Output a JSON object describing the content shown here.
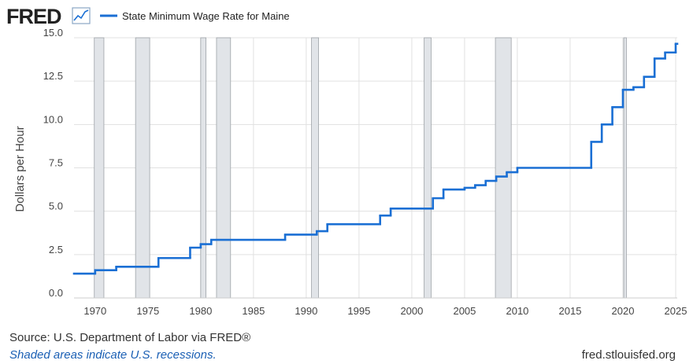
{
  "logo": "FRED",
  "chart_data": {
    "type": "line",
    "step": "post",
    "y_label": "Dollars per Hour",
    "x": [
      1968,
      1970,
      1972,
      1976,
      1979,
      1980,
      1981,
      1988,
      1991,
      1992,
      1997,
      1998,
      2002,
      2003,
      2005,
      2006,
      2007,
      2008,
      2009,
      2010,
      2017,
      2018,
      2019,
      2020,
      2021,
      2022,
      2023,
      2024,
      2025
    ],
    "series": [
      {
        "name": "State Minimum Wage Rate for Maine",
        "color": "#1a6fd4",
        "values": [
          1.4,
          1.6,
          1.8,
          2.3,
          2.9,
          3.1,
          3.35,
          3.65,
          3.85,
          4.25,
          4.75,
          5.15,
          5.75,
          6.25,
          6.35,
          6.5,
          6.75,
          7.0,
          7.25,
          7.5,
          9.0,
          10.0,
          11.0,
          12.0,
          12.15,
          12.75,
          13.8,
          14.15,
          14.65
        ]
      }
    ],
    "recessions": [
      [
        1969.92,
        1970.83
      ],
      [
        1973.83,
        1975.17
      ],
      [
        1980.0,
        1980.5
      ],
      [
        1981.5,
        1982.83
      ],
      [
        1990.5,
        1991.17
      ],
      [
        2001.17,
        2001.83
      ],
      [
        2007.92,
        2009.42
      ],
      [
        2020.08,
        2020.33
      ]
    ],
    "xlim": [
      1968,
      2025
    ],
    "xticks": [
      1970,
      1975,
      1980,
      1985,
      1990,
      1995,
      2000,
      2005,
      2010,
      2015,
      2020,
      2025
    ],
    "ylim": [
      0,
      15
    ],
    "yticks": [
      {
        "value": 0,
        "label": "0.0"
      },
      {
        "value": 2.5,
        "label": "2.5"
      },
      {
        "value": 5,
        "label": "5.0"
      },
      {
        "value": 7.5,
        "label": "7.5"
      },
      {
        "value": 10,
        "label": "10.0"
      },
      {
        "value": 12.5,
        "label": "12.5"
      },
      {
        "value": 15,
        "label": "15.0"
      }
    ],
    "grid": true
  },
  "footer": {
    "source": "Source: U.S. Department of Labor via FRED®",
    "note": "Shaded areas indicate U.S. recessions.",
    "url": "fred.stlouisfed.org"
  }
}
